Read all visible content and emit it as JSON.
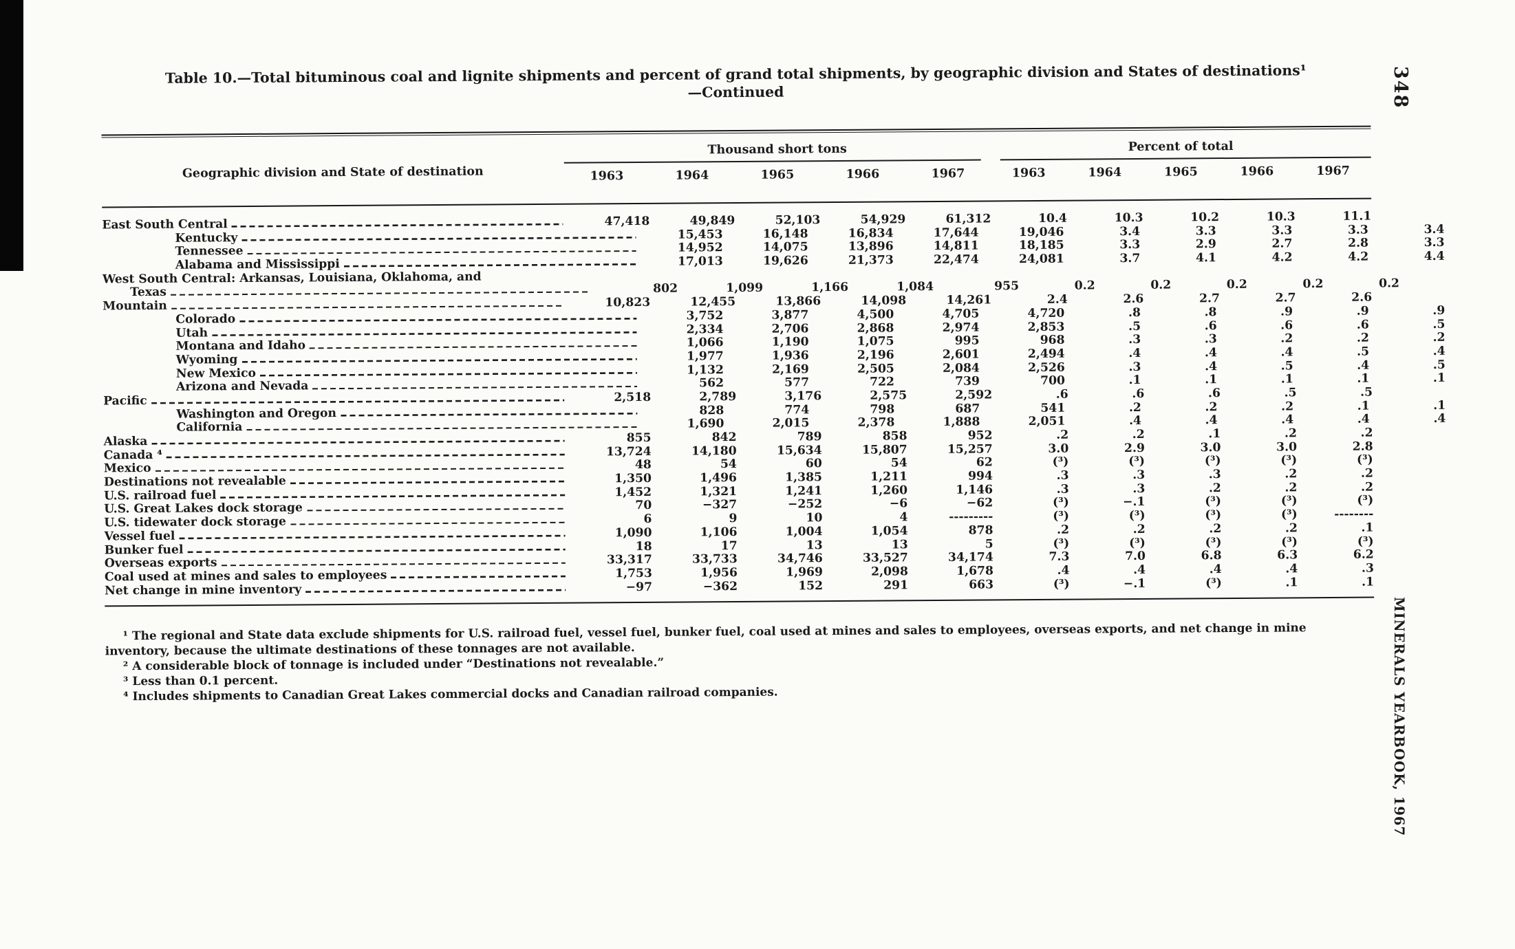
{
  "page": {
    "number": "348",
    "book": "MINERALS YEARBOOK, 1967"
  },
  "table": {
    "title_line1": "Table 10.—Total bituminous coal and lignite shipments and percent of grand total shipments, by geographic division and States of destinations¹",
    "title_line2": "—Continued",
    "stub_header": "Geographic division and State of destination",
    "group1_header": "Thousand short tons",
    "group2_header": "Percent of total",
    "years": [
      "1963",
      "1964",
      "1965",
      "1966",
      "1967"
    ],
    "rows": [
      {
        "label": "East South Central",
        "indent": 0,
        "tons": [
          "47,418",
          "49,849",
          "52,103",
          "54,929",
          "61,312"
        ],
        "pct": [
          "10.4",
          "10.3",
          "10.2",
          "10.3",
          "11.1"
        ]
      },
      {
        "label": "Kentucky",
        "indent": 1,
        "tons": [
          "15,453",
          "16,148",
          "16,834",
          "17,644",
          "19,046"
        ],
        "pct": [
          "3.4",
          "3.3",
          "3.3",
          "3.3",
          "3.4"
        ]
      },
      {
        "label": "Tennessee",
        "indent": 1,
        "tons": [
          "14,952",
          "14,075",
          "13,896",
          "14,811",
          "18,185"
        ],
        "pct": [
          "3.3",
          "2.9",
          "2.7",
          "2.8",
          "3.3"
        ]
      },
      {
        "label": "Alabama and Mississippi",
        "indent": 1,
        "tons": [
          "17,013",
          "19,626",
          "21,373",
          "22,474",
          "24,081"
        ],
        "pct": [
          "3.7",
          "4.1",
          "4.2",
          "4.2",
          "4.4"
        ]
      },
      {
        "label": "West South Central: Arkansas, Louisiana, Oklahoma, and",
        "indent": 0,
        "label_only": true,
        "tons": [],
        "pct": []
      },
      {
        "label": "Texas",
        "indent": 2,
        "tons": [
          "802",
          "1,099",
          "1,166",
          "1,084",
          "955"
        ],
        "pct": [
          "0.2",
          "0.2",
          "0.2",
          "0.2",
          "0.2"
        ]
      },
      {
        "label": "Mountain",
        "indent": 0,
        "tons": [
          "10,823",
          "12,455",
          "13,866",
          "14,098",
          "14,261"
        ],
        "pct": [
          "2.4",
          "2.6",
          "2.7",
          "2.7",
          "2.6"
        ]
      },
      {
        "label": "Colorado",
        "indent": 1,
        "tons": [
          "3,752",
          "3,877",
          "4,500",
          "4,705",
          "4,720"
        ],
        "pct": [
          ".8",
          ".8",
          ".9",
          ".9",
          ".9"
        ]
      },
      {
        "label": "Utah",
        "indent": 1,
        "tons": [
          "2,334",
          "2,706",
          "2,868",
          "2,974",
          "2,853"
        ],
        "pct": [
          ".5",
          ".6",
          ".6",
          ".6",
          ".5"
        ]
      },
      {
        "label": "Montana and Idaho",
        "indent": 1,
        "tons": [
          "1,066",
          "1,190",
          "1,075",
          "995",
          "968"
        ],
        "pct": [
          ".3",
          ".3",
          ".2",
          ".2",
          ".2"
        ]
      },
      {
        "label": "Wyoming",
        "indent": 1,
        "tons": [
          "1,977",
          "1,936",
          "2,196",
          "2,601",
          "2,494"
        ],
        "pct": [
          ".4",
          ".4",
          ".4",
          ".5",
          ".4"
        ]
      },
      {
        "label": "New Mexico",
        "indent": 1,
        "tons": [
          "1,132",
          "2,169",
          "2,505",
          "2,084",
          "2,526"
        ],
        "pct": [
          ".3",
          ".4",
          ".5",
          ".4",
          ".5"
        ]
      },
      {
        "label": "Arizona and Nevada",
        "indent": 1,
        "tons": [
          "562",
          "577",
          "722",
          "739",
          "700"
        ],
        "pct": [
          ".1",
          ".1",
          ".1",
          ".1",
          ".1"
        ]
      },
      {
        "label": "Pacific",
        "indent": 0,
        "tons": [
          "2,518",
          "2,789",
          "3,176",
          "2,575",
          "2,592"
        ],
        "pct": [
          ".6",
          ".6",
          ".6",
          ".5",
          ".5"
        ]
      },
      {
        "label": "Washington and Oregon",
        "indent": 1,
        "tons": [
          "828",
          "774",
          "798",
          "687",
          "541"
        ],
        "pct": [
          ".2",
          ".2",
          ".2",
          ".1",
          ".1"
        ]
      },
      {
        "label": "California",
        "indent": 1,
        "tons": [
          "1,690",
          "2,015",
          "2,378",
          "1,888",
          "2,051"
        ],
        "pct": [
          ".4",
          ".4",
          ".4",
          ".4",
          ".4"
        ]
      },
      {
        "label": "Alaska",
        "indent": 0,
        "tons": [
          "855",
          "842",
          "789",
          "858",
          "952"
        ],
        "pct": [
          ".2",
          ".2",
          ".1",
          ".2",
          ".2"
        ]
      },
      {
        "label": "Canada ⁴",
        "indent": 0,
        "tons": [
          "13,724",
          "14,180",
          "15,634",
          "15,807",
          "15,257"
        ],
        "pct": [
          "3.0",
          "2.9",
          "3.0",
          "3.0",
          "2.8"
        ]
      },
      {
        "label": "Mexico",
        "indent": 0,
        "tons": [
          "48",
          "54",
          "60",
          "54",
          "62"
        ],
        "pct": [
          "(³)",
          "(³)",
          "(³)",
          "(³)",
          "(³)"
        ]
      },
      {
        "label": "Destinations not revealable",
        "indent": 0,
        "tons": [
          "1,350",
          "1,496",
          "1,385",
          "1,211",
          "994"
        ],
        "pct": [
          ".3",
          ".3",
          ".3",
          ".2",
          ".2"
        ]
      },
      {
        "label": "U.S. railroad fuel",
        "indent": 0,
        "tons": [
          "1,452",
          "1,321",
          "1,241",
          "1,260",
          "1,146"
        ],
        "pct": [
          ".3",
          ".3",
          ".2",
          ".2",
          ".2"
        ]
      },
      {
        "label": "U.S. Great Lakes dock storage",
        "indent": 0,
        "tons": [
          "70",
          "−327",
          "−252",
          "−6",
          "−62"
        ],
        "pct": [
          "(³)",
          "−.1",
          "(³)",
          "(³)",
          "(³)"
        ]
      },
      {
        "label": "U.S. tidewater dock storage",
        "indent": 0,
        "tons": [
          "6",
          "9",
          "10",
          "4",
          "---------"
        ],
        "pct": [
          "(³)",
          "(³)",
          "(³)",
          "(³)",
          "--------"
        ]
      },
      {
        "label": "Vessel fuel",
        "indent": 0,
        "tons": [
          "1,090",
          "1,106",
          "1,004",
          "1,054",
          "878"
        ],
        "pct": [
          ".2",
          ".2",
          ".2",
          ".2",
          ".1"
        ]
      },
      {
        "label": "Bunker fuel",
        "indent": 0,
        "tons": [
          "18",
          "17",
          "13",
          "13",
          "5"
        ],
        "pct": [
          "(³)",
          "(³)",
          "(³)",
          "(³)",
          "(³)"
        ]
      },
      {
        "label": "Overseas exports",
        "indent": 0,
        "tons": [
          "33,317",
          "33,733",
          "34,746",
          "33,527",
          "34,174"
        ],
        "pct": [
          "7.3",
          "7.0",
          "6.8",
          "6.3",
          "6.2"
        ]
      },
      {
        "label": "Coal used at mines and sales to employees",
        "indent": 0,
        "tons": [
          "1,753",
          "1,956",
          "1,969",
          "2,098",
          "1,678"
        ],
        "pct": [
          ".4",
          ".4",
          ".4",
          ".4",
          ".3"
        ]
      },
      {
        "label": "Net change in mine inventory",
        "indent": 0,
        "tons": [
          "−97",
          "−362",
          "152",
          "291",
          "663"
        ],
        "pct": [
          "(³)",
          "−.1",
          "(³)",
          ".1",
          ".1"
        ]
      }
    ]
  },
  "footnotes": [
    "¹ The regional and State data exclude shipments for U.S. railroad fuel, vessel fuel, bunker fuel, coal used at mines and sales to employees, overseas exports, and net change in mine inventory, because the ultimate destinations of these tonnages are not available.",
    "² A considerable block of tonnage is included under “Destinations not revealable.”",
    "³ Less than 0.1 percent.",
    "⁴ Includes shipments to Canadian Great Lakes commercial docks and Canadian railroad companies."
  ]
}
